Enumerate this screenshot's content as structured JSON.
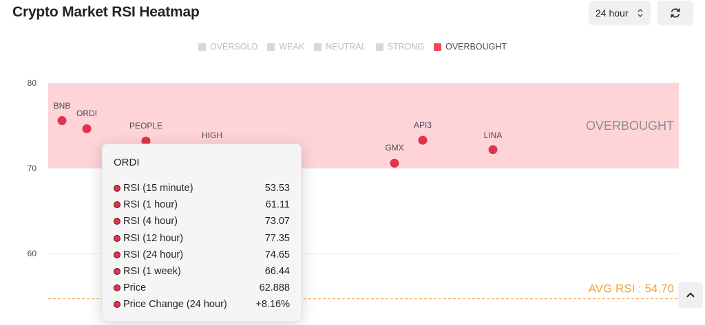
{
  "header": {
    "title": "Crypto Market RSI Heatmap",
    "timeframe": "24 hour",
    "refresh_icon": "refresh-icon",
    "select_icon": "chevron-up-down-icon"
  },
  "legend": [
    {
      "label": "OVERSOLD",
      "active": false
    },
    {
      "label": "WEAK",
      "active": false
    },
    {
      "label": "NEUTRAL",
      "active": false
    },
    {
      "label": "STRONG",
      "active": false
    },
    {
      "label": "OVERBOUGHT",
      "active": true
    }
  ],
  "colors": {
    "overbought_band": "#ffd4d8",
    "point": "#e0334d",
    "avg_line": "#f0a23c",
    "active_legend": "#f6465d"
  },
  "chart_data": {
    "type": "scatter",
    "ylim": [
      55,
      80
    ],
    "yticks": [
      60,
      70,
      80
    ],
    "zone": {
      "label": "OVERBOUGHT",
      "from": 70,
      "to": 80
    },
    "avg": {
      "label": "AVG RSI : 54.70",
      "value": 54.7
    },
    "points": [
      {
        "label": "BNB",
        "y": 75.6
      },
      {
        "label": "ORDI",
        "y": 74.65
      },
      {
        "label": "PEOPLE",
        "y": 73.2
      },
      {
        "label": "HIGH",
        "y": null
      },
      {
        "label": "GMX",
        "y": 70.6
      },
      {
        "label": "API3",
        "y": 73.3
      },
      {
        "label": "LINA",
        "y": 72.2
      }
    ]
  },
  "tooltip": {
    "title": "ORDI",
    "rows": [
      {
        "label": "RSI (15 minute)",
        "value": "53.53"
      },
      {
        "label": "RSI (1 hour)",
        "value": "61.11"
      },
      {
        "label": "RSI (4 hour)",
        "value": "73.07"
      },
      {
        "label": "RSI (12 hour)",
        "value": "77.35"
      },
      {
        "label": "RSI (24 hour)",
        "value": "74.65"
      },
      {
        "label": "RSI (1 week)",
        "value": "66.44"
      },
      {
        "label": "Price",
        "value": "62.888"
      },
      {
        "label": "Price Change (24 hour)",
        "value": "+8.16%"
      }
    ]
  },
  "scroll_top_icon": "chevron-up-icon"
}
